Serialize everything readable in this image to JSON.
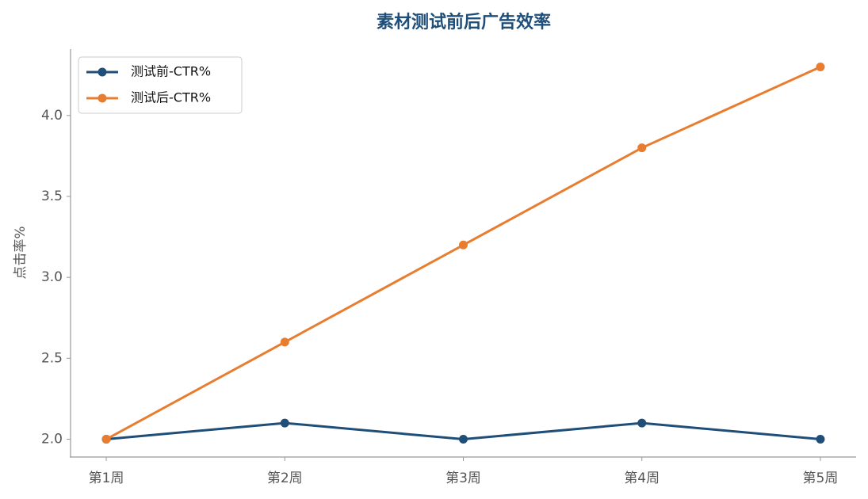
{
  "chart_data": {
    "type": "line",
    "title": "素材测试前后广告效率",
    "y_label": "点击率%",
    "categories": [
      "第1周",
      "第2周",
      "第3周",
      "第4周",
      "第5周"
    ],
    "series": [
      {
        "name": "测试前-CTR%",
        "color": "#1f4e79",
        "values": [
          2.0,
          2.1,
          2.0,
          2.1,
          2.0
        ]
      },
      {
        "name": "测试后-CTR%",
        "color": "#e87d2f",
        "values": [
          2.0,
          2.6,
          3.2,
          3.8,
          4.3
        ]
      }
    ],
    "ylim": [
      1.89,
      4.41
    ],
    "yticks": [
      {
        "value": 2,
        "label": "2.0"
      },
      2.5,
      {
        "value": 3,
        "label": "3.0"
      },
      3.5,
      {
        "value": 4,
        "label": "4.0"
      }
    ],
    "grid": false,
    "legend": "upper-left"
  }
}
